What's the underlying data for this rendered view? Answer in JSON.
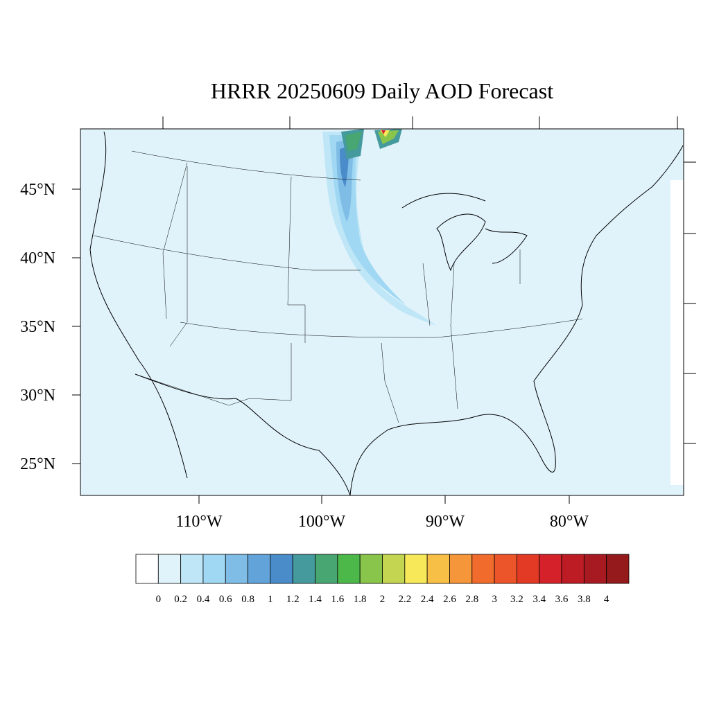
{
  "title": "HRRR 20250609 Daily AOD Forecast",
  "lat_labels": [
    "45°N",
    "40°N",
    "35°N",
    "30°N",
    "25°N"
  ],
  "lon_labels": [
    "110°W",
    "100°W",
    "90°W",
    "80°W"
  ],
  "colorbar": {
    "levels": [
      0,
      0.2,
      0.4,
      0.6,
      0.8,
      1,
      1.2,
      1.4,
      1.6,
      1.8,
      2,
      2.2,
      2.4,
      2.6,
      2.8,
      3,
      3.2,
      3.4,
      3.6,
      3.8,
      4
    ],
    "colors": [
      "#ffffff",
      "#e0f3fb",
      "#bfe6f7",
      "#a0d8f3",
      "#80bde6",
      "#62a3d9",
      "#4a8bca",
      "#459a9d",
      "#47a672",
      "#4cb84a",
      "#88c54a",
      "#c3d551",
      "#f7e85a",
      "#f8bf47",
      "#f6963b",
      "#f16b2c",
      "#ec5529",
      "#e33a25",
      "#d52129",
      "#bd1c25",
      "#a81a21",
      "#951a1b"
    ]
  }
}
